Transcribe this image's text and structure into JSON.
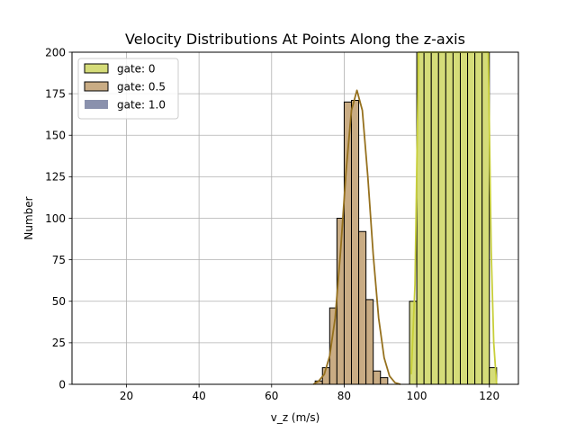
{
  "chart_data": {
    "type": "bar",
    "title": "Velocity Distributions At Points Along the z-axis",
    "xlabel": "v_z (m/s)",
    "ylabel": "Number",
    "xlim": [
      5,
      128
    ],
    "ylim": [
      0,
      200
    ],
    "xticks": [
      20,
      40,
      60,
      80,
      100,
      120
    ],
    "yticks": [
      0,
      25,
      50,
      75,
      100,
      125,
      150,
      175,
      200
    ],
    "grid": true,
    "legend_position": "upper-left",
    "series": [
      {
        "name": "gate: 0",
        "color": "#d5dc79",
        "kde_color": "#c8cf3a",
        "bin_width": 2,
        "bins": [
          {
            "x0": 98,
            "x1": 100,
            "count": 50
          },
          {
            "x0": 100,
            "x1": 102,
            "count": 200
          },
          {
            "x0": 102,
            "x1": 104,
            "count": 200
          },
          {
            "x0": 104,
            "x1": 106,
            "count": 200
          },
          {
            "x0": 106,
            "x1": 108,
            "count": 200
          },
          {
            "x0": 108,
            "x1": 110,
            "count": 200
          },
          {
            "x0": 110,
            "x1": 112,
            "count": 200
          },
          {
            "x0": 112,
            "x1": 114,
            "count": 200
          },
          {
            "x0": 114,
            "x1": 116,
            "count": 200
          },
          {
            "x0": 116,
            "x1": 118,
            "count": 200
          },
          {
            "x0": 118,
            "x1": 120,
            "count": 200
          },
          {
            "x0": 120,
            "x1": 122,
            "count": 10
          }
        ],
        "kde_points": [
          [
            98.5,
            6
          ],
          [
            99.5,
            60
          ],
          [
            100.5,
            200
          ],
          [
            119.7,
            200
          ],
          [
            120.5,
            80
          ],
          [
            121.2,
            25
          ],
          [
            122,
            0
          ]
        ]
      },
      {
        "name": "gate: 0.5",
        "color": "#c9ac84",
        "kde_color": "#96711e",
        "bin_width": 2,
        "bins": [
          {
            "x0": 72,
            "x1": 74,
            "count": 2
          },
          {
            "x0": 74,
            "x1": 76,
            "count": 10
          },
          {
            "x0": 76,
            "x1": 78,
            "count": 46
          },
          {
            "x0": 78,
            "x1": 80,
            "count": 100
          },
          {
            "x0": 80,
            "x1": 82,
            "count": 170
          },
          {
            "x0": 82,
            "x1": 84,
            "count": 171
          },
          {
            "x0": 84,
            "x1": 86,
            "count": 92
          },
          {
            "x0": 86,
            "x1": 88,
            "count": 51
          },
          {
            "x0": 88,
            "x1": 90,
            "count": 8
          },
          {
            "x0": 90,
            "x1": 92,
            "count": 4
          }
        ],
        "kde_points": [
          [
            71.5,
            0
          ],
          [
            73,
            2
          ],
          [
            74.5,
            6
          ],
          [
            76,
            17
          ],
          [
            77.5,
            40
          ],
          [
            79,
            80
          ],
          [
            80.5,
            128
          ],
          [
            82,
            165
          ],
          [
            83.5,
            177
          ],
          [
            85,
            165
          ],
          [
            86.5,
            125
          ],
          [
            88,
            78
          ],
          [
            89.5,
            40
          ],
          [
            91,
            16
          ],
          [
            92.5,
            5
          ],
          [
            94,
            1
          ],
          [
            95.5,
            0
          ]
        ]
      },
      {
        "name": "gate: 1.0",
        "color": "#8a91ad",
        "bins": []
      }
    ]
  }
}
